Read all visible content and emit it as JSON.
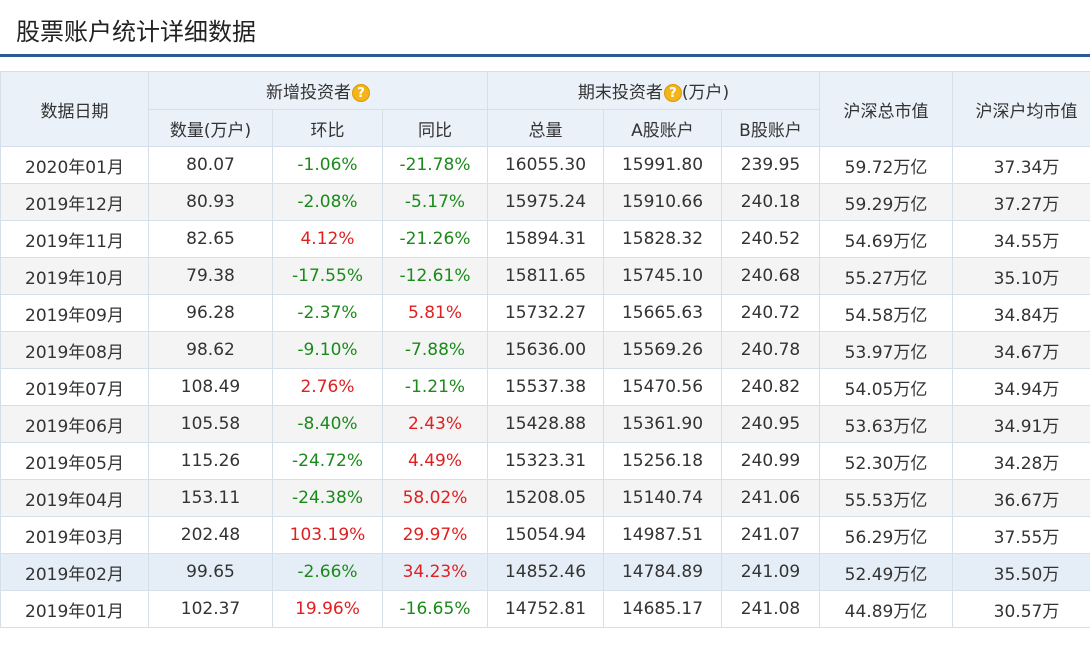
{
  "page": {
    "title": "股票账户统计详细数据"
  },
  "colors": {
    "up": "#e02020",
    "down": "#1a8a1a",
    "header_bg": "#eaf1f8",
    "accent": "#2f5a9a"
  },
  "header": {
    "date": "数据日期",
    "new_group": "新增投资者",
    "end_group": "期末投资者",
    "end_group_unit": "(万户)",
    "mkt_cap": "沪深总市值",
    "avg_cap": "沪深户均市值",
    "qty": "数量(万户)",
    "mom": "环比",
    "yoy": "同比",
    "total": "总量",
    "a_acct": "A股账户",
    "b_acct": "B股账户",
    "help_glyph": "?"
  },
  "rows": [
    {
      "date": "2020年01月",
      "qty": "80.07",
      "mom": "-1.06%",
      "yoy": "-21.78%",
      "total": "16055.30",
      "a": "15991.80",
      "b": "239.95",
      "cap": "59.72万亿",
      "avg": "37.34万"
    },
    {
      "date": "2019年12月",
      "qty": "80.93",
      "mom": "-2.08%",
      "yoy": "-5.17%",
      "total": "15975.24",
      "a": "15910.66",
      "b": "240.18",
      "cap": "59.29万亿",
      "avg": "37.27万"
    },
    {
      "date": "2019年11月",
      "qty": "82.65",
      "mom": "4.12%",
      "yoy": "-21.26%",
      "total": "15894.31",
      "a": "15828.32",
      "b": "240.52",
      "cap": "54.69万亿",
      "avg": "34.55万"
    },
    {
      "date": "2019年10月",
      "qty": "79.38",
      "mom": "-17.55%",
      "yoy": "-12.61%",
      "total": "15811.65",
      "a": "15745.10",
      "b": "240.68",
      "cap": "55.27万亿",
      "avg": "35.10万"
    },
    {
      "date": "2019年09月",
      "qty": "96.28",
      "mom": "-2.37%",
      "yoy": "5.81%",
      "total": "15732.27",
      "a": "15665.63",
      "b": "240.72",
      "cap": "54.58万亿",
      "avg": "34.84万"
    },
    {
      "date": "2019年08月",
      "qty": "98.62",
      "mom": "-9.10%",
      "yoy": "-7.88%",
      "total": "15636.00",
      "a": "15569.26",
      "b": "240.78",
      "cap": "53.97万亿",
      "avg": "34.67万"
    },
    {
      "date": "2019年07月",
      "qty": "108.49",
      "mom": "2.76%",
      "yoy": "-1.21%",
      "total": "15537.38",
      "a": "15470.56",
      "b": "240.82",
      "cap": "54.05万亿",
      "avg": "34.94万"
    },
    {
      "date": "2019年06月",
      "qty": "105.58",
      "mom": "-8.40%",
      "yoy": "2.43%",
      "total": "15428.88",
      "a": "15361.90",
      "b": "240.95",
      "cap": "53.63万亿",
      "avg": "34.91万"
    },
    {
      "date": "2019年05月",
      "qty": "115.26",
      "mom": "-24.72%",
      "yoy": "4.49%",
      "total": "15323.31",
      "a": "15256.18",
      "b": "240.99",
      "cap": "52.30万亿",
      "avg": "34.28万"
    },
    {
      "date": "2019年04月",
      "qty": "153.11",
      "mom": "-24.38%",
      "yoy": "58.02%",
      "total": "15208.05",
      "a": "15140.74",
      "b": "241.06",
      "cap": "55.53万亿",
      "avg": "36.67万"
    },
    {
      "date": "2019年03月",
      "qty": "202.48",
      "mom": "103.19%",
      "yoy": "29.97%",
      "total": "15054.94",
      "a": "14987.51",
      "b": "241.07",
      "cap": "56.29万亿",
      "avg": "37.55万"
    },
    {
      "date": "2019年02月",
      "qty": "99.65",
      "mom": "-2.66%",
      "yoy": "34.23%",
      "total": "14852.46",
      "a": "14784.89",
      "b": "241.09",
      "cap": "52.49万亿",
      "avg": "35.50万",
      "highlight": true
    },
    {
      "date": "2019年01月",
      "qty": "102.37",
      "mom": "19.96%",
      "yoy": "-16.65%",
      "total": "14752.81",
      "a": "14685.17",
      "b": "241.08",
      "cap": "44.89万亿",
      "avg": "30.57万"
    }
  ]
}
